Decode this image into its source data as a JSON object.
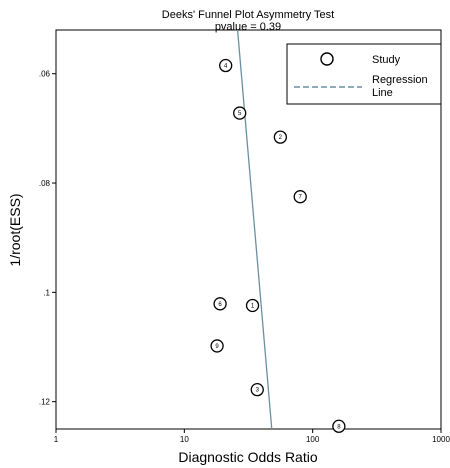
{
  "chart_data": {
    "type": "scatter",
    "title": "Deeks' Funnel Plot Asymmetry Test",
    "subtitle": "pvalue  =   0.39",
    "xlabel": "Diagnostic Odds Ratio",
    "ylabel": "1/root(ESS)",
    "x_scale": "log",
    "xlim": [
      1,
      1000
    ],
    "ylim": [
      0.052,
      0.125
    ],
    "y_inverted": true,
    "x_ticks": [
      1,
      10,
      100,
      1000
    ],
    "y_ticks": [
      0.06,
      0.08,
      0.1,
      0.12
    ],
    "x_tick_labels": [
      "1",
      "10",
      "100",
      "1000"
    ],
    "y_tick_labels": [
      ".06",
      ".08",
      ".1",
      ".12"
    ],
    "grid": false,
    "legend_position": "top-right",
    "legend": [
      {
        "label": "Study",
        "marker": "circle"
      },
      {
        "label": "Regression\nLine",
        "marker": "dashed-line"
      }
    ],
    "series": [
      {
        "name": "Study",
        "points": [
          {
            "label": "4",
            "x": 21,
            "y": 0.0585
          },
          {
            "label": "5",
            "x": 27,
            "y": 0.0672
          },
          {
            "label": "2",
            "x": 56,
            "y": 0.0716
          },
          {
            "label": "7",
            "x": 80,
            "y": 0.0825
          },
          {
            "label": "6",
            "x": 19,
            "y": 0.1021
          },
          {
            "label": "1",
            "x": 34,
            "y": 0.1024
          },
          {
            "label": "9",
            "x": 18,
            "y": 0.1098
          },
          {
            "label": "3",
            "x": 37,
            "y": 0.1178
          },
          {
            "label": "8",
            "x": 160,
            "y": 0.1245
          }
        ]
      },
      {
        "name": "Regression Line",
        "line": [
          {
            "x": 26,
            "y": 0.052
          },
          {
            "x": 48,
            "y": 0.125
          }
        ]
      }
    ],
    "colors": {
      "regression": "#6b8fa0",
      "axis": "#000000",
      "marker": "#000000"
    }
  }
}
